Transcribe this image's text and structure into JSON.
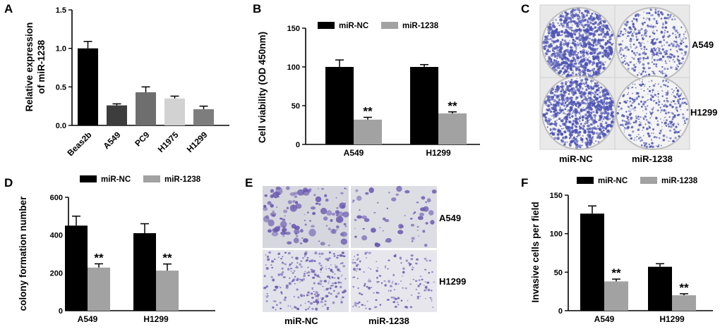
{
  "colors": {
    "black": "#000000",
    "gray": "#a2a2a2",
    "dish": "#4e54b4",
    "cellstain": "#6b5ab0"
  },
  "panels": {
    "A": {
      "label": "A"
    },
    "B": {
      "label": "B"
    },
    "C": {
      "label": "C",
      "cols": [
        "miR-NC",
        "miR-1238"
      ],
      "rows": [
        "A549",
        "H1299"
      ]
    },
    "D": {
      "label": "D"
    },
    "E": {
      "label": "E",
      "cols": [
        "miR-NC",
        "miR-1238"
      ],
      "rows": [
        "A549",
        "H1299"
      ]
    },
    "F": {
      "label": "F"
    }
  },
  "chart_data": [
    {
      "panel": "A",
      "type": "bar",
      "ylabel": "Relative expression of miR-1238",
      "ylabel_lines": [
        "Relative expression",
        "of miR-1238"
      ],
      "categories": [
        "Beas2b",
        "A549",
        "PC9",
        "H1975",
        "H1299"
      ],
      "values": [
        1.0,
        0.26,
        0.43,
        0.35,
        0.21
      ],
      "errors": [
        0.09,
        0.02,
        0.07,
        0.03,
        0.04
      ],
      "bar_colors": [
        "#000000",
        "#3d3d3d",
        "#6e6e6e",
        "#d2d2d2",
        "#7d7d7d"
      ],
      "ylim": [
        0,
        1.5
      ],
      "yticks": [
        0.0,
        0.5,
        1.0,
        1.5
      ],
      "ytick_labels": [
        "0.0",
        "0.5",
        "1.0",
        "1.5"
      ]
    },
    {
      "panel": "B",
      "type": "bar",
      "ylabel": "Cell viability (OD 450nm)",
      "categories": [
        "A549",
        "H1299"
      ],
      "series": [
        {
          "name": "miR-NC",
          "values": [
            100,
            100
          ],
          "errors": [
            9,
            3
          ],
          "color": "#000000"
        },
        {
          "name": "miR-1238",
          "values": [
            32,
            40
          ],
          "errors": [
            3,
            2
          ],
          "color": "#a2a2a2"
        }
      ],
      "annotations": [
        "**",
        "**"
      ],
      "ylim": [
        0,
        150
      ],
      "yticks": [
        0,
        50,
        100,
        150
      ],
      "ytick_labels": [
        "0",
        "50",
        "100",
        "150"
      ]
    },
    {
      "panel": "D",
      "type": "bar",
      "ylabel": "colony formation number",
      "categories": [
        "A549",
        "H1299"
      ],
      "series": [
        {
          "name": "miR-NC",
          "values": [
            450,
            410
          ],
          "errors": [
            50,
            50
          ],
          "color": "#000000"
        },
        {
          "name": "miR-1238",
          "values": [
            228,
            212
          ],
          "errors": [
            20,
            35
          ],
          "color": "#a2a2a2"
        }
      ],
      "annotations": [
        "**",
        "**"
      ],
      "ylim": [
        0,
        600
      ],
      "yticks": [
        0,
        200,
        400,
        600
      ],
      "ytick_labels": [
        "0",
        "200",
        "400",
        "600"
      ]
    },
    {
      "panel": "F",
      "type": "bar",
      "ylabel": "Invasive cells per field",
      "categories": [
        "A549",
        "H1299"
      ],
      "series": [
        {
          "name": "miR-NC",
          "values": [
            126,
            57
          ],
          "errors": [
            10,
            4
          ],
          "color": "#000000"
        },
        {
          "name": "miR-1238",
          "values": [
            38,
            20
          ],
          "errors": [
            3,
            2
          ],
          "color": "#a2a2a2"
        }
      ],
      "annotations": [
        "**",
        "**"
      ],
      "ylim": [
        0,
        150
      ],
      "yticks": [
        0,
        50,
        100,
        150
      ],
      "ytick_labels": [
        "0",
        "50",
        "100",
        "150"
      ]
    }
  ]
}
